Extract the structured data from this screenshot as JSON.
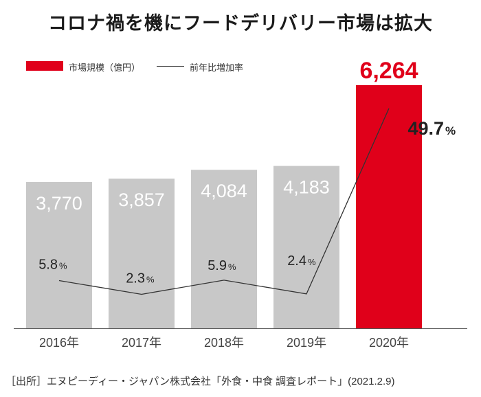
{
  "chart_data": {
    "type": "bar",
    "title": "コロナ禍を機にフードデリバリー市場は拡大",
    "categories": [
      "2016年",
      "2017年",
      "2018年",
      "2019年",
      "2020年"
    ],
    "series": [
      {
        "name": "市場規模（億円）",
        "type": "bar",
        "values": [
          3770,
          3857,
          4084,
          4183,
          6264
        ],
        "value_labels": [
          "3,770",
          "3,857",
          "4,084",
          "4,183",
          "6,264"
        ],
        "colors": [
          "#c8c8c8",
          "#c8c8c8",
          "#c8c8c8",
          "#c8c8c8",
          "#e0001a"
        ]
      },
      {
        "name": "前年比増加率",
        "type": "line",
        "values": [
          5.8,
          2.3,
          5.9,
          2.4,
          49.7
        ],
        "unit": "%"
      }
    ],
    "bar_ylim": [
      0,
      6400
    ],
    "line_ylim": [
      0,
      55
    ],
    "grid": false,
    "legend_position": "top-left",
    "highlight_color": "#e0001a",
    "bar_color": "#c8c8c8",
    "source": "［出所］エヌピーディー・ジャパン株式会社「外食・中食 調査レポート」(2021.2.9)"
  }
}
